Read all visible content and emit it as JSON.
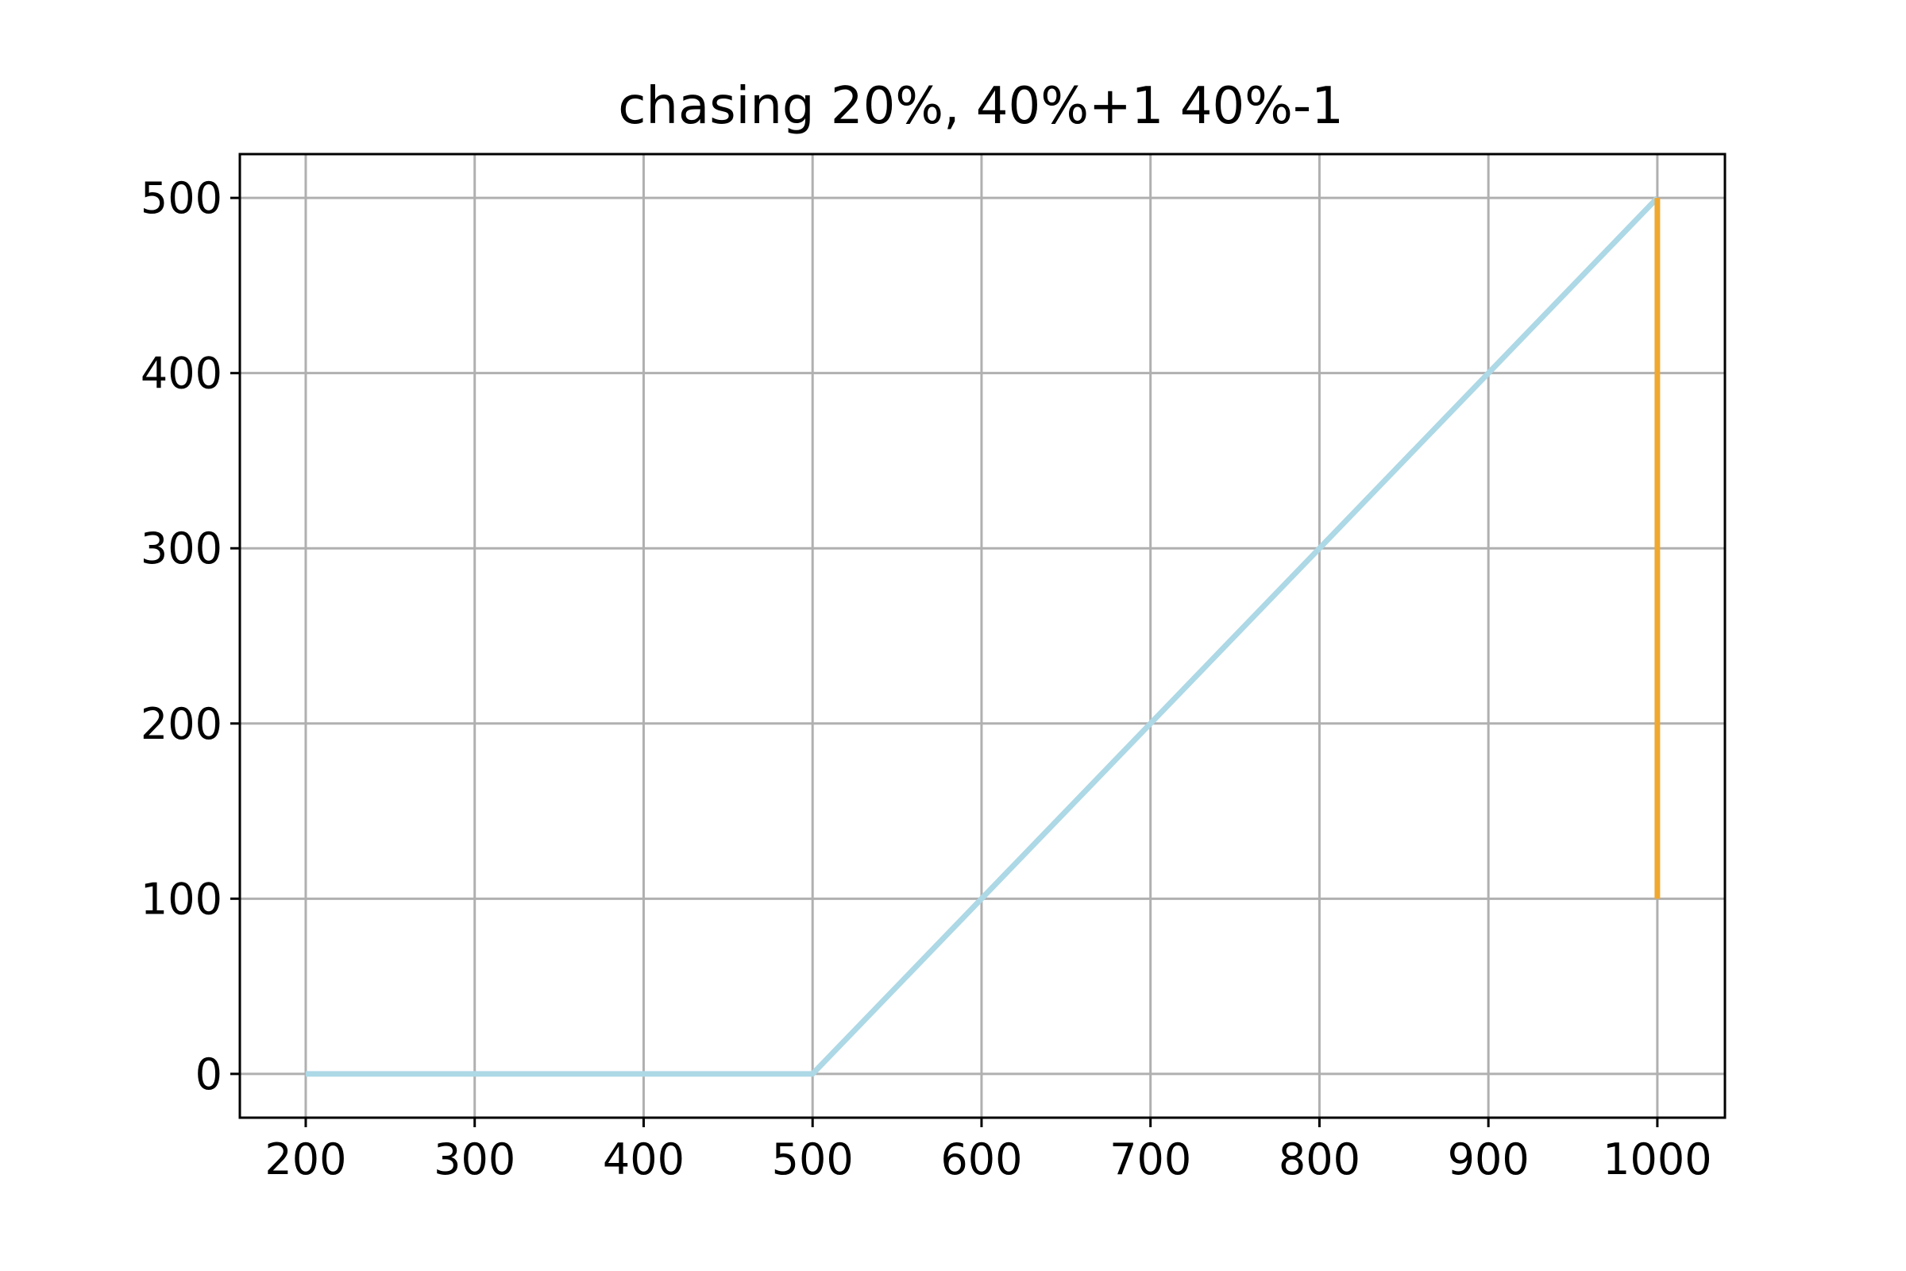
{
  "chart_data": {
    "type": "line",
    "title": "chasing 20%, 40%+1 40%-1",
    "xlabel": "",
    "ylabel": "",
    "xlim": [
      161,
      1040
    ],
    "ylim": [
      -25,
      525
    ],
    "xticks": [
      200,
      300,
      400,
      500,
      600,
      700,
      800,
      900,
      1000
    ],
    "yticks": [
      0,
      100,
      200,
      300,
      400,
      500
    ],
    "xtick_labels": [
      "200",
      "300",
      "400",
      "500",
      "600",
      "700",
      "800",
      "900",
      "1000"
    ],
    "ytick_labels": [
      "0",
      "100",
      "200",
      "300",
      "400",
      "500"
    ],
    "grid": true,
    "legend": "none",
    "series": [
      {
        "color": "#add8e6",
        "x": [
          200,
          500,
          1000
        ],
        "y": [
          0,
          0,
          500
        ]
      },
      {
        "color": "#f0a830",
        "x": [
          1000,
          1000
        ],
        "y": [
          100,
          500
        ]
      }
    ]
  }
}
